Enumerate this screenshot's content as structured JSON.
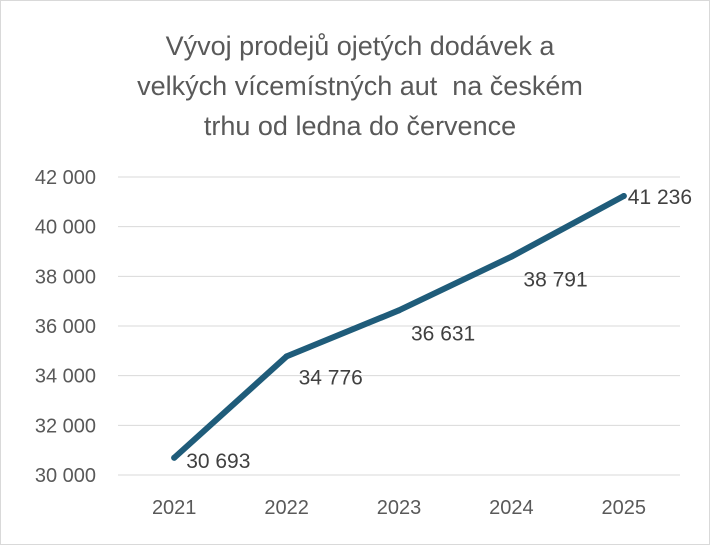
{
  "chart_data": {
    "type": "line",
    "title_lines": [
      "Vývoj prodejů ojetých dodávek a",
      "velkých vícemístných aut  na českém",
      "trhu od ledna do července"
    ],
    "categories": [
      "2021",
      "2022",
      "2023",
      "2024",
      "2025"
    ],
    "values": [
      30693,
      34776,
      36631,
      38791,
      41236
    ],
    "data_labels": [
      "30 693",
      "34 776",
      "36 631",
      "38 791",
      "41 236"
    ],
    "y_ticks": [
      "30 000",
      "32 000",
      "34 000",
      "36 000",
      "38 000",
      "40 000",
      "42 000"
    ],
    "y_tick_values": [
      30000,
      32000,
      34000,
      36000,
      38000,
      40000,
      42000
    ],
    "ylim": [
      30000,
      42000
    ],
    "grid": true,
    "legend": "none",
    "colors": {
      "line": "#1f5c7a",
      "grid": "#d9d9d9",
      "text": "#595959"
    }
  }
}
